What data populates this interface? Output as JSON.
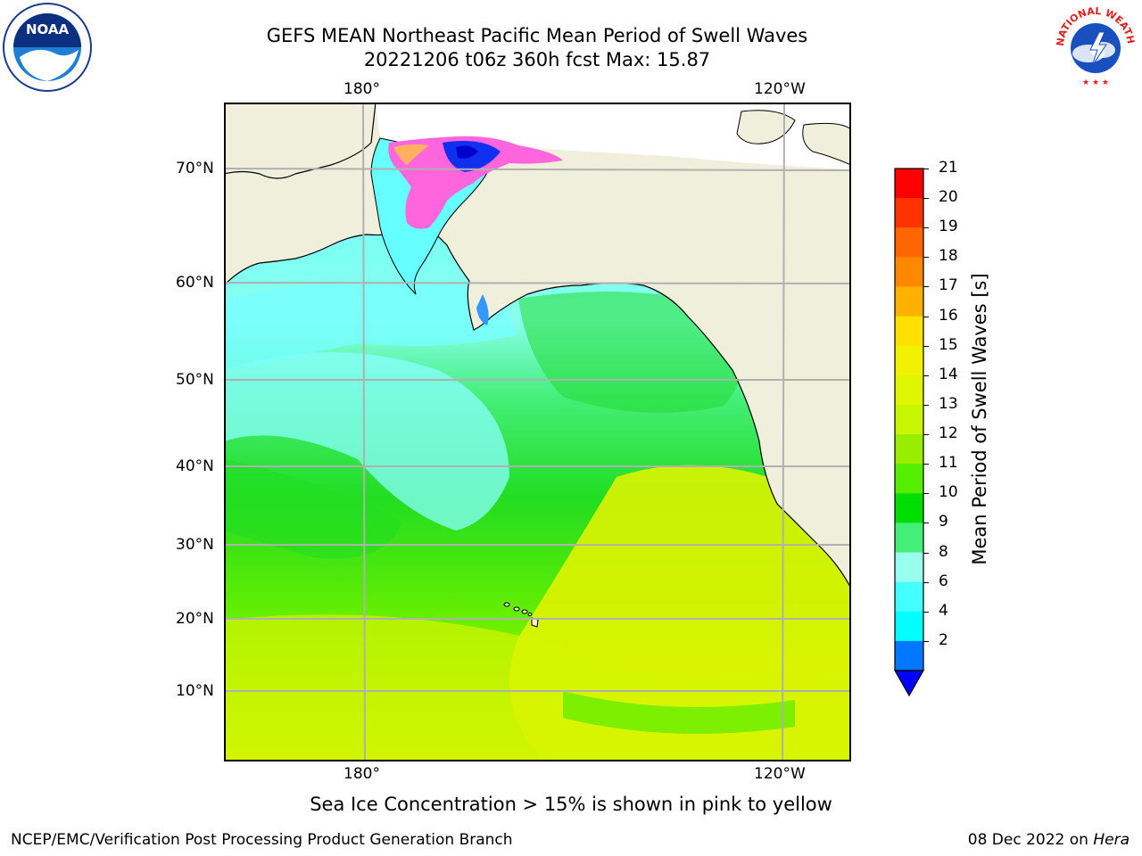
{
  "header": {
    "title_line1": "GEFS MEAN Northeast Pacific Mean Period of Swell Waves",
    "title_line2": "20221206 t06z 360h fcst   Max: 15.87"
  },
  "logos": {
    "left": {
      "name": "noaa-logo",
      "text": "NOAA",
      "ring_text": "NATIONAL OCEANIC AND ATMOSPHERIC ADMINISTRATION · U.S. DEPARTMENT OF COMMERCE"
    },
    "right": {
      "name": "nws-logo",
      "ring_text": "NATIONAL WEATHER SERVICE"
    }
  },
  "map": {
    "top_lon_labels": [
      "180°",
      "120°W"
    ],
    "bottom_lon_labels": [
      "180°",
      "120°W"
    ],
    "lat_labels": [
      "70°N",
      "60°N",
      "50°N",
      "40°N",
      "30°N",
      "20°N",
      "10°N"
    ],
    "land_color": "#efefdc",
    "grid_color": "#b0b0b0"
  },
  "colorbar": {
    "title": "Mean Period of Swell Waves [s]",
    "ticks": [
      "21",
      "20",
      "19",
      "18",
      "17",
      "16",
      "15",
      "14",
      "13",
      "12",
      "11",
      "10",
      "9",
      "8",
      "6",
      "4",
      "2"
    ],
    "colors_top_to_bottom": [
      "#ff0000",
      "#ff3300",
      "#ff6600",
      "#ff8800",
      "#ffb000",
      "#ffe000",
      "#f2f200",
      "#e0f500",
      "#c8f500",
      "#99ee00",
      "#55ee00",
      "#00dd00",
      "#44ee77",
      "#99ffee",
      "#44ffff",
      "#00ffff",
      "#0077ff"
    ],
    "under_color": "#0000ff"
  },
  "notes": {
    "sea_ice": "Sea Ice Concentration > 15% is shown in pink to yellow"
  },
  "footer": {
    "left": "NCEP/EMC/Verification Post Processing Product Generation Branch",
    "right_date": "08 Dec 2022 on ",
    "right_host": "Hera"
  }
}
